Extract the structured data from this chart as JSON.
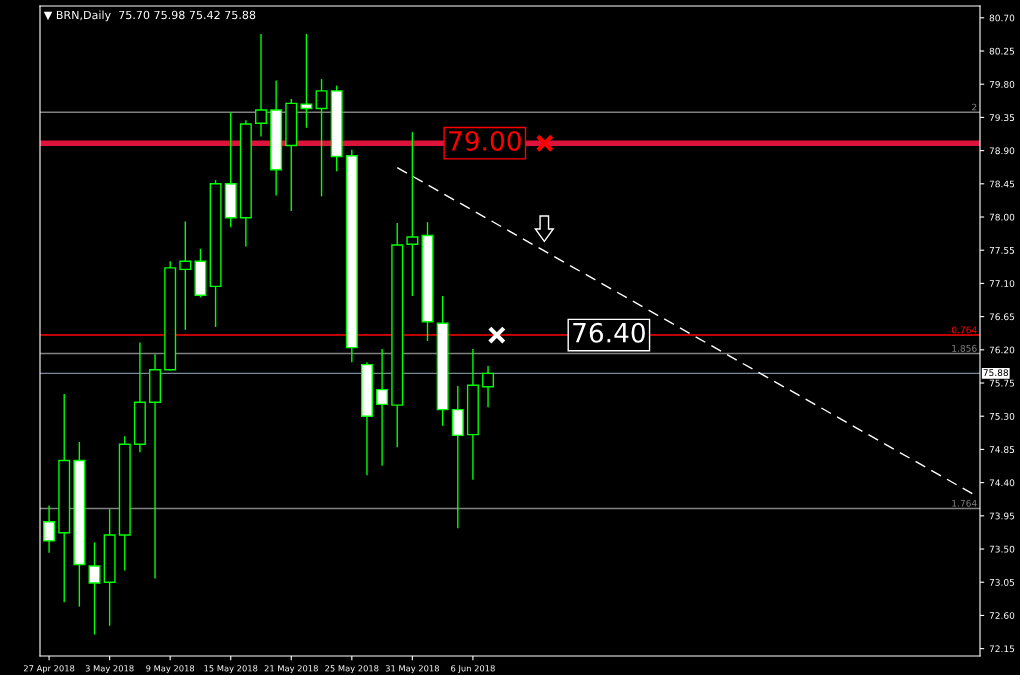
{
  "chart_data": {
    "type": "candlestick",
    "title": "▼ BRN,Daily  75.70 75.98 75.42 75.88",
    "categories": [
      "27 Apr 2018",
      null,
      null,
      null,
      "3 May 2018",
      null,
      null,
      null,
      "9 May 2018",
      null,
      null,
      null,
      "15 May 2018",
      null,
      null,
      null,
      "21 May 2018",
      null,
      null,
      null,
      "25 May 2018",
      null,
      null,
      null,
      "31 May 2018",
      null,
      null,
      null,
      "6 Jun 2018",
      null,
      null,
      null,
      null,
      null,
      null,
      null,
      null,
      null,
      null,
      null,
      null,
      null,
      null,
      null,
      null,
      null,
      null,
      null,
      null,
      null,
      null,
      null,
      null,
      null,
      null,
      null,
      null,
      null,
      null,
      null,
      null,
      null
    ],
    "ohlc": [
      [
        73.87,
        74.09,
        73.45,
        73.61
      ],
      [
        73.72,
        75.6,
        72.78,
        74.7
      ],
      [
        74.7,
        74.95,
        72.72,
        73.29
      ],
      [
        73.27,
        73.59,
        72.34,
        73.04
      ],
      [
        73.05,
        74.04,
        72.46,
        73.69
      ],
      [
        73.69,
        75.03,
        73.21,
        74.92
      ],
      [
        74.92,
        76.3,
        74.81,
        75.49
      ],
      [
        75.49,
        76.14,
        73.1,
        75.93
      ],
      [
        75.93,
        77.4,
        75.92,
        77.31
      ],
      [
        77.29,
        77.94,
        76.47,
        77.4
      ],
      [
        77.4,
        77.57,
        76.91,
        76.94
      ],
      [
        77.06,
        78.5,
        76.51,
        78.45
      ],
      [
        78.45,
        79.42,
        77.86,
        77.99
      ],
      [
        77.99,
        79.31,
        77.6,
        79.26
      ],
      [
        79.27,
        80.48,
        79.09,
        79.45
      ],
      [
        79.45,
        79.85,
        78.29,
        78.64
      ],
      [
        78.97,
        79.6,
        78.08,
        79.54
      ],
      [
        79.53,
        80.48,
        79.21,
        79.47
      ],
      [
        79.47,
        79.87,
        78.28,
        79.71
      ],
      [
        79.71,
        79.78,
        78.62,
        78.82
      ],
      [
        78.83,
        78.91,
        76.03,
        76.23
      ],
      [
        76.0,
        76.03,
        74.5,
        75.3
      ],
      [
        75.66,
        76.21,
        74.63,
        75.46
      ],
      [
        75.45,
        77.92,
        74.88,
        77.62
      ],
      [
        77.63,
        79.15,
        76.93,
        77.73
      ],
      [
        77.75,
        77.93,
        76.32,
        76.58
      ],
      [
        76.56,
        76.93,
        75.17,
        75.39
      ],
      [
        75.39,
        75.71,
        73.78,
        75.04
      ],
      [
        75.05,
        76.21,
        74.44,
        75.72
      ],
      [
        75.7,
        75.98,
        75.42,
        75.88
      ],
      null,
      null,
      null,
      null,
      null,
      null,
      null,
      null,
      null,
      null,
      null,
      null,
      null,
      null,
      null,
      null,
      null,
      null,
      null,
      null,
      null,
      null,
      null,
      null,
      null,
      null,
      null,
      null,
      null,
      null,
      null,
      null
    ],
    "color": "#00ff00",
    "series": [
      {
        "type": "line",
        "color": "#ffffff",
        "line_style": "dashed",
        "values": [
          null,
          null,
          null,
          null,
          null,
          null,
          null,
          null,
          null,
          null,
          null,
          null,
          null,
          null,
          null,
          null,
          null,
          null,
          null,
          null,
          null,
          null,
          null,
          78.67,
          null,
          null,
          null,
          null,
          null,
          null,
          null,
          null,
          null,
          null,
          null,
          null,
          null,
          null,
          null,
          null,
          null,
          null,
          null,
          null,
          null,
          null,
          null,
          null,
          null,
          null,
          null,
          null,
          null,
          null,
          null,
          null,
          null,
          null,
          null,
          null,
          null,
          74.25
        ]
      }
    ],
    "ylim": [
      72.05,
      80.86
    ],
    "yticks": [
      {
        "value": 80.7,
        "label": "80.70"
      },
      {
        "value": 80.25,
        "label": "80.25"
      },
      {
        "value": 79.8,
        "label": "79.80"
      },
      {
        "value": 79.35,
        "label": "79.35"
      },
      {
        "value": 78.9,
        "label": "78.90"
      },
      {
        "value": 78.45,
        "label": "78.45"
      },
      {
        "value": 78.0,
        "label": "78.00"
      },
      {
        "value": 77.55,
        "label": "77.55"
      },
      {
        "value": 77.1,
        "label": "77.10"
      },
      {
        "value": 76.65,
        "label": "76.65"
      },
      {
        "value": 76.2,
        "label": "76.20"
      },
      {
        "value": 75.75,
        "label": "75.75"
      },
      {
        "value": 75.3,
        "label": "75.30"
      },
      {
        "value": 74.85,
        "label": "74.85"
      },
      {
        "value": 74.4,
        "label": "74.40"
      },
      {
        "value": 73.95,
        "label": "73.95"
      },
      {
        "value": 73.5,
        "label": "73.50"
      },
      {
        "value": 73.05,
        "label": "73.05"
      },
      {
        "value": 72.6,
        "label": "72.60"
      },
      {
        "value": 72.15,
        "label": "72.15"
      }
    ],
    "ref_lines": [
      {
        "axis": "y",
        "value": 79.42,
        "color": "#808080"
      },
      {
        "axis": "y",
        "value": 79.0,
        "color": "#dc143c"
      },
      {
        "axis": "y",
        "value": 76.4,
        "color": "#ff0000"
      },
      {
        "axis": "y",
        "value": 76.15,
        "color": "#808080"
      },
      {
        "axis": "y",
        "value": 75.88,
        "label": "75.88",
        "color": "#778899"
      },
      {
        "axis": "y",
        "value": 74.05,
        "color": "#808080"
      }
    ],
    "annotations": [
      {
        "text": "79.00",
        "y": 79.0
      },
      {
        "text": "76.40",
        "y": 76.4
      },
      {
        "text": "2",
        "y": 79.42
      },
      {
        "text": "0.764",
        "y": 76.4
      },
      {
        "text": "1.856",
        "y": 76.15
      },
      {
        "text": "1.764",
        "y": 74.05
      }
    ],
    "grid": false
  }
}
